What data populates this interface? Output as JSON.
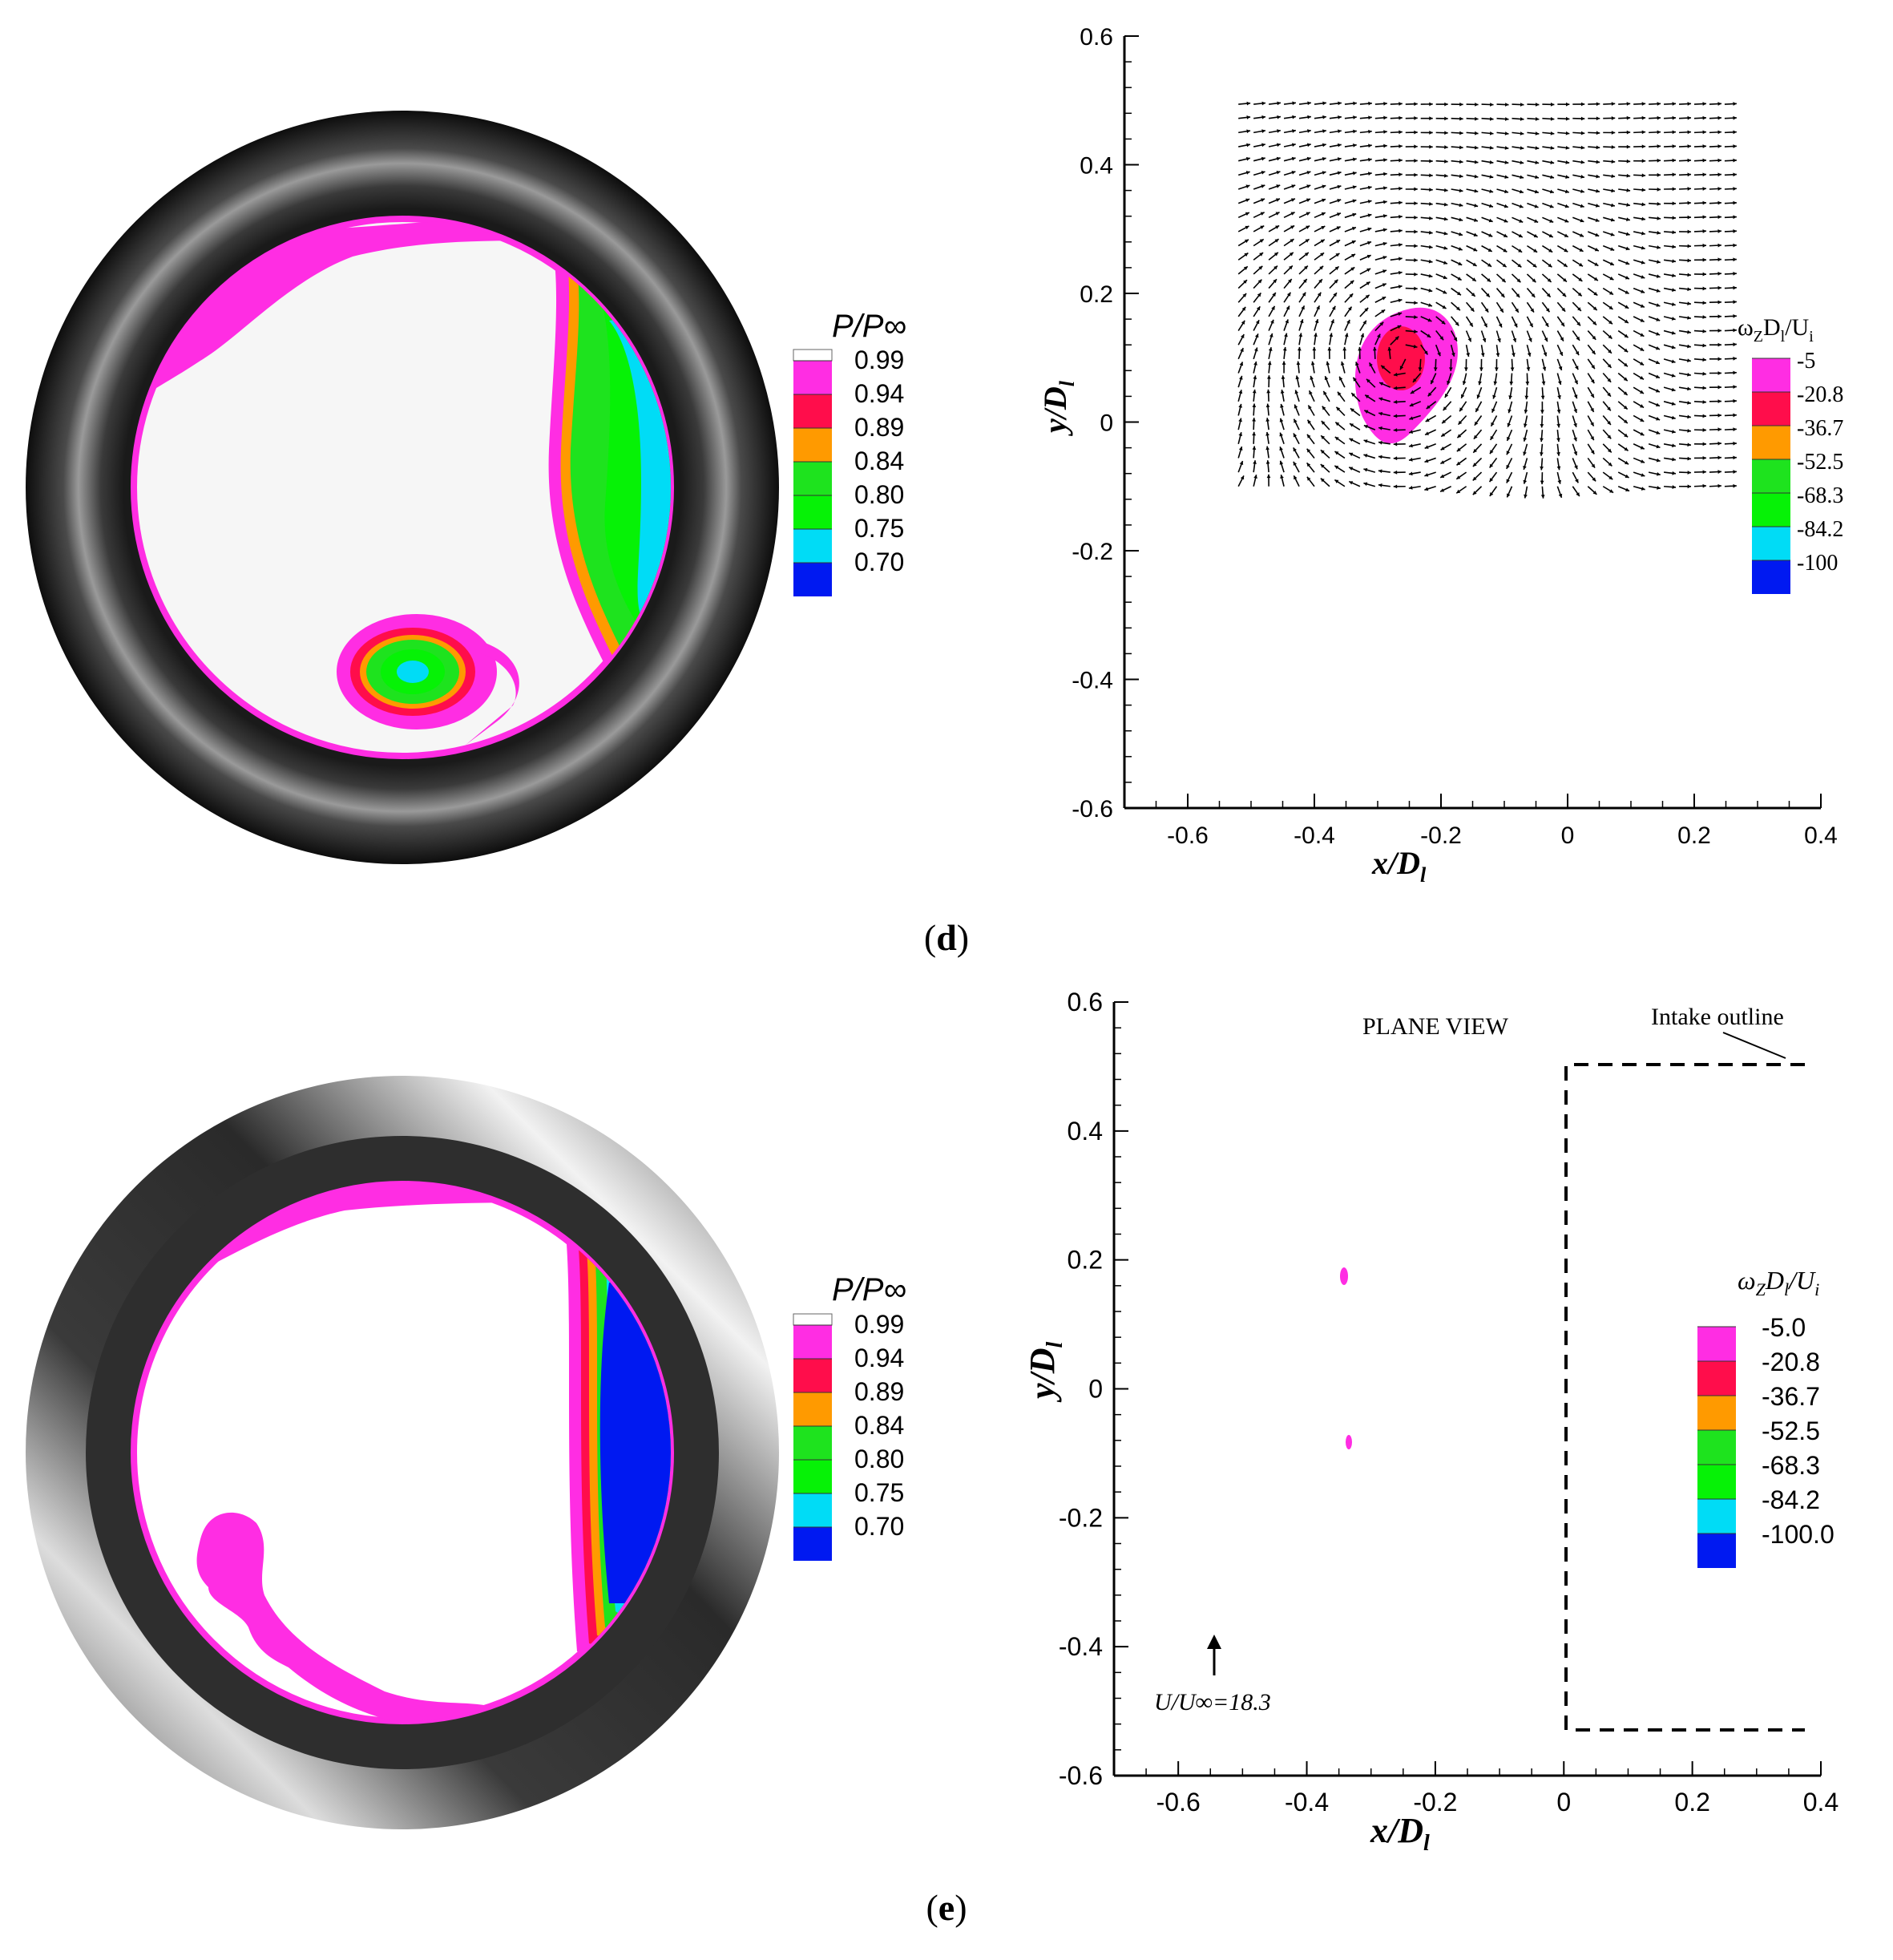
{
  "rows": [
    {
      "caption_letter": "d",
      "contour": {
        "legend_title": "P/P∞",
        "legend_levels": [
          "0.99",
          "0.94",
          "0.89",
          "0.84",
          "0.80",
          "0.75",
          "0.70"
        ],
        "legend_colors": [
          "#ff2de3",
          "#ff0d4b",
          "#ff9a00",
          "#1ee31e",
          "#06f206",
          "#00dcf6",
          "#0019f1"
        ]
      },
      "vector_plot": {
        "xlabel": "x/D",
        "xlabel_sub": "l",
        "ylabel": "y/D",
        "ylabel_sub": "l",
        "x_ticks": [
          "-0.6",
          "-0.4",
          "-0.2",
          "0",
          "0.2",
          "0.4"
        ],
        "y_ticks": [
          "0.6",
          "0.4",
          "0.2",
          "0",
          "-0.2",
          "-0.4",
          "-0.6"
        ],
        "legend_title_main": "ω",
        "legend_title_sub1": "Z",
        "legend_title_mid": "D",
        "legend_title_sub2": "l",
        "legend_title_end": "/U",
        "legend_title_sub3": "i",
        "legend_levels": [
          "-5",
          "-20.8",
          "-36.7",
          "-52.5",
          "-68.3",
          "-84.2",
          "-100"
        ],
        "legend_colors": [
          "#ff2de3",
          "#ff0d4b",
          "#ff9a00",
          "#1ee31e",
          "#06f206",
          "#00dcf6",
          "#0019f1"
        ]
      }
    },
    {
      "caption_letter": "e",
      "contour": {
        "legend_title": "P/P∞",
        "legend_levels": [
          "0.99",
          "0.94",
          "0.89",
          "0.84",
          "0.80",
          "0.75",
          "0.70"
        ],
        "legend_colors": [
          "#ff2de3",
          "#ff0d4b",
          "#ff9a00",
          "#1ee31e",
          "#06f206",
          "#00dcf6",
          "#0019f1"
        ]
      },
      "vector_plot": {
        "xlabel": "x/D",
        "xlabel_sub": "l",
        "ylabel": "y/D",
        "ylabel_sub": "l",
        "x_ticks": [
          "-0.6",
          "-0.4",
          "-0.2",
          "0",
          "0.2",
          "0.4"
        ],
        "y_ticks": [
          "0.6",
          "0.4",
          "0.2",
          "0",
          "-0.2",
          "-0.4",
          "-0.6"
        ],
        "annotation_plane_view": "PLANE VIEW",
        "annotation_intake": "Intake outline",
        "reference_vector_label": "U/U∞=18.3",
        "legend_title_main": "ω",
        "legend_title_sub1": "Z",
        "legend_title_mid": "D",
        "legend_title_sub2": "l",
        "legend_title_end": "/U",
        "legend_title_sub3": "i",
        "legend_levels": [
          "-5.0",
          "-20.8",
          "-36.7",
          "-52.5",
          "-68.3",
          "-84.2",
          "-100.0"
        ],
        "legend_colors": [
          "#ff2de3",
          "#ff0d4b",
          "#ff9a00",
          "#1ee31e",
          "#06f206",
          "#00dcf6",
          "#0019f1"
        ]
      }
    }
  ],
  "chart_data": [
    {
      "type": "vector_field",
      "xlabel": "x/Dl",
      "ylabel": "y/Dl",
      "xlim": [
        -0.7,
        0.4
      ],
      "ylim": [
        -0.6,
        0.6
      ],
      "vortex_center": [
        -0.26,
        0.1
      ],
      "field_extent_x": [
        -0.52,
        0.26
      ],
      "field_extent_y": [
        -0.1,
        0.51
      ],
      "colorbar_title": "ωZDl/Ui",
      "colorbar_levels": [
        -5,
        -20.8,
        -36.7,
        -52.5,
        -68.3,
        -84.2,
        -100
      ]
    },
    {
      "type": "vector_field",
      "xlabel": "x/Dl",
      "ylabel": "y/Dl",
      "xlim": [
        -0.7,
        0.4
      ],
      "ylim": [
        -0.6,
        0.6
      ],
      "intake_outline": {
        "x_left": 0,
        "x_right": 0.4,
        "y_top": 0.5,
        "y_bottom": -0.535
      },
      "small_regions": [
        [
          -0.335,
          0.17
        ],
        [
          -0.33,
          -0.09
        ]
      ],
      "reference_vector": "U/U∞=18.3",
      "colorbar_title": "ωZDl/Ui",
      "colorbar_levels": [
        -5.0,
        -20.8,
        -36.7,
        -52.5,
        -68.3,
        -84.2,
        -100.0
      ]
    }
  ]
}
